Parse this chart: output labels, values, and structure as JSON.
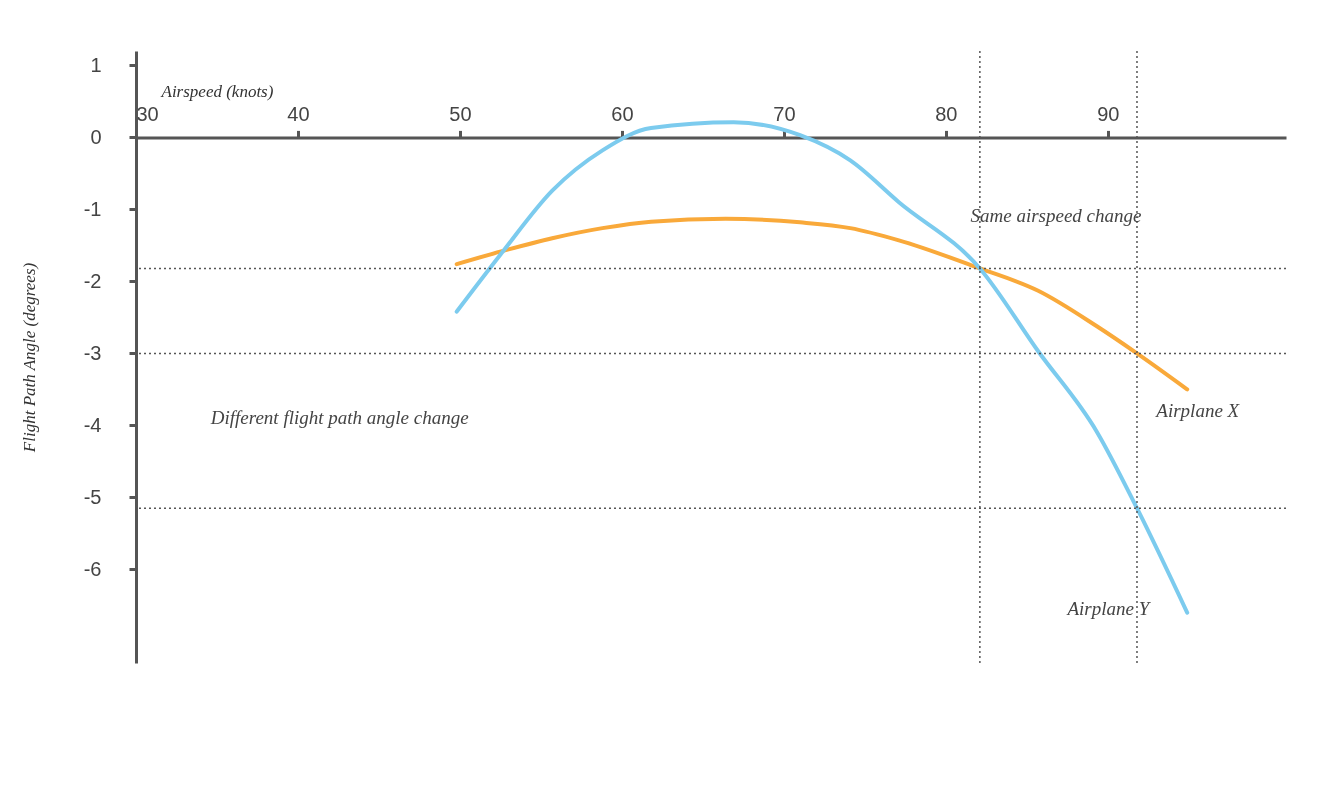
{
  "chart_data": {
    "type": "line",
    "xlabel": "Airspeed (knots)",
    "ylabel": "Flight Path Angle (degrees)",
    "xlim": [
      30,
      101
    ],
    "xticks": [
      30,
      40,
      50,
      60,
      70,
      80,
      90
    ],
    "ylim": [
      -7.3,
      1.2
    ],
    "yticks": [
      1,
      0,
      -1,
      -2,
      -3,
      -4,
      -5,
      -6
    ],
    "grid": false,
    "legend": false,
    "marker": "none",
    "line_style": "solid",
    "series": [
      {
        "name": "Airplane X",
        "color": "#f9a93a",
        "x": [
          49.8,
          52.6,
          55.7,
          58.8,
          61.8,
          66.4,
          71,
          74.1,
          77.1,
          82.1,
          85.7,
          89.3,
          91.8,
          94.9
        ],
        "values": [
          -1.76,
          -1.58,
          -1.4,
          -1.26,
          -1.17,
          -1.13,
          -1.18,
          -1.26,
          -1.43,
          -1.82,
          -2.13,
          -2.62,
          -3.0,
          -3.5
        ]
      },
      {
        "name": "Airplane Y",
        "color": "#7ccbee",
        "x": [
          49.8,
          52.6,
          55.7,
          58.8,
          61.8,
          66.9,
          71,
          74.1,
          77.1,
          82.1,
          85.7,
          89.3,
          91.8,
          94.9
        ],
        "values": [
          -2.42,
          -1.6,
          -0.74,
          -0.18,
          0.13,
          0.21,
          0.03,
          -0.32,
          -0.9,
          -1.82,
          -2.97,
          -4.08,
          -5.15,
          -6.6
        ]
      }
    ],
    "ref_lines": [
      {
        "axis": "y",
        "value": -1.82,
        "color": "#555555",
        "line_style": "dotted"
      },
      {
        "axis": "y",
        "value": -3.0,
        "color": "#555555",
        "line_style": "dotted"
      },
      {
        "axis": "y",
        "value": -5.15,
        "color": "#555555",
        "line_style": "dotted"
      },
      {
        "axis": "x",
        "value": 82.1,
        "color": "#555555",
        "line_style": "dotted"
      },
      {
        "axis": "x",
        "value": 91.8,
        "color": "#555555",
        "line_style": "dotted"
      }
    ],
    "annotations": [
      "Same airspeed change",
      "Different flight path angle change"
    ]
  }
}
